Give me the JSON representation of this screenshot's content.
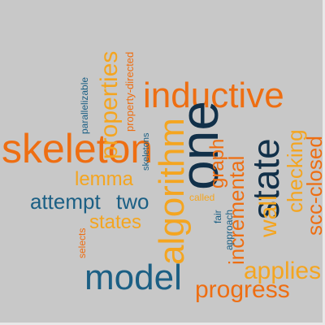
{
  "colors": {
    "background": "#c8c8c8",
    "orange": "#ee6e12",
    "yellow": "#f4a520",
    "blue": "#1b5f84",
    "navy": "#113049"
  },
  "words": {
    "inductive": "inductive",
    "skeleton": "skeleton",
    "one": "one",
    "state": "state",
    "algorithm": "algorithm",
    "model": "model",
    "properties": "properties",
    "graph": "graph",
    "incremental": "incremental",
    "checking": "checking",
    "scc_closed": "scc-closed",
    "wall": "wall",
    "lemma": "lemma",
    "attempt": "attempt",
    "two": "two",
    "states": "states",
    "applies": "applies",
    "progress": "progress",
    "parallelizable": "parallelizable",
    "property_directed": "property-directed",
    "skeletons": "skeletons",
    "called": "called",
    "fair": "fair",
    "approach": "approach",
    "selects": "selects"
  }
}
